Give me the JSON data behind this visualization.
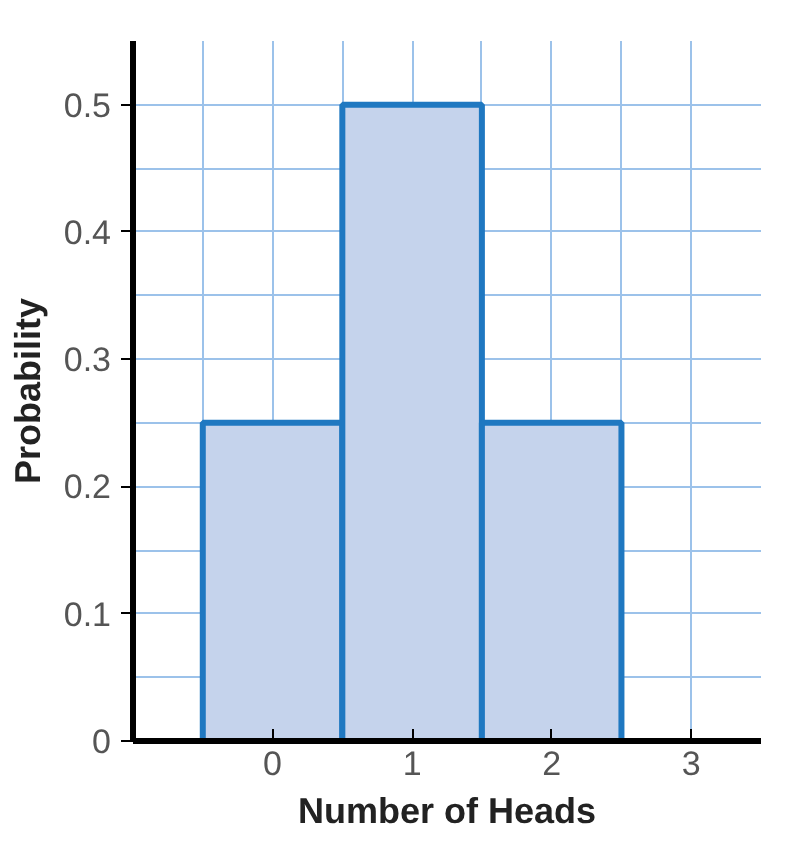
{
  "chart_data": {
    "type": "bar",
    "categories": [
      "0",
      "1",
      "2",
      "3"
    ],
    "values": [
      0.25,
      0.5,
      0.25,
      null
    ],
    "color": "#c5d3ec",
    "xlabel": "Number of Heads",
    "ylabel": "Probability",
    "ylim": [
      0,
      0.55
    ],
    "yticks": [
      0,
      0.1,
      0.2,
      0.3,
      0.4,
      0.5
    ],
    "grid": true
  }
}
